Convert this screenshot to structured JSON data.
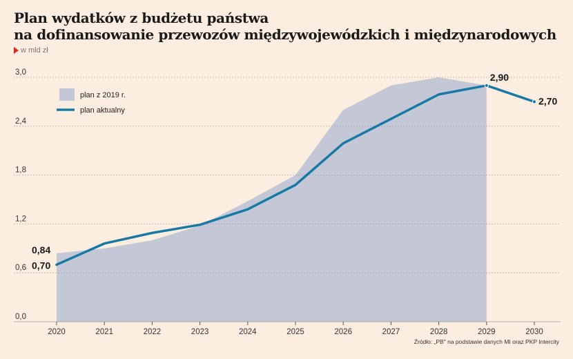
{
  "title_line1": "Plan wydatków z budżetu państwa",
  "title_line2": "na dofinansowanie przewozów międzywojewódzkich i międzynarodowych",
  "unit_label": "w mld zł",
  "source": "Źródło: „PB\" na podstawie danych MI oraz PKP Intercity",
  "colors": {
    "background": "#fbeee0",
    "area": "#c4c8d6",
    "line": "#1979a5",
    "marker": "#e1251b",
    "grid": "#9a9a9a"
  },
  "chart_data": {
    "type": "line",
    "categories": [
      "2020",
      "2021",
      "2022",
      "2023",
      "2024",
      "2025",
      "2026",
      "2027",
      "2028",
      "2029",
      "2030"
    ],
    "ylim": [
      0,
      3.0
    ],
    "yticks": [
      "0,0",
      "0,6",
      "1,2",
      "1,8",
      "2,4",
      "3,0"
    ],
    "series": [
      {
        "name": "plan z 2019 r.",
        "type": "area",
        "values": [
          0.84,
          0.9,
          1.0,
          1.18,
          1.48,
          1.8,
          2.6,
          2.9,
          3.0,
          2.9,
          null
        ]
      },
      {
        "name": "plan aktualny",
        "type": "line",
        "values": [
          0.7,
          0.96,
          1.09,
          1.19,
          1.38,
          1.68,
          2.19,
          2.49,
          2.79,
          2.9,
          2.7
        ]
      }
    ],
    "data_labels": [
      {
        "text": "0,84",
        "category": "2020",
        "value": 0.84
      },
      {
        "text": "0,70",
        "category": "2020",
        "value": 0.7
      },
      {
        "text": "2,90",
        "category": "2029",
        "value": 2.9
      },
      {
        "text": "2,70",
        "category": "2030",
        "value": 2.7
      }
    ],
    "grid": true,
    "legend_position": "top-left"
  }
}
